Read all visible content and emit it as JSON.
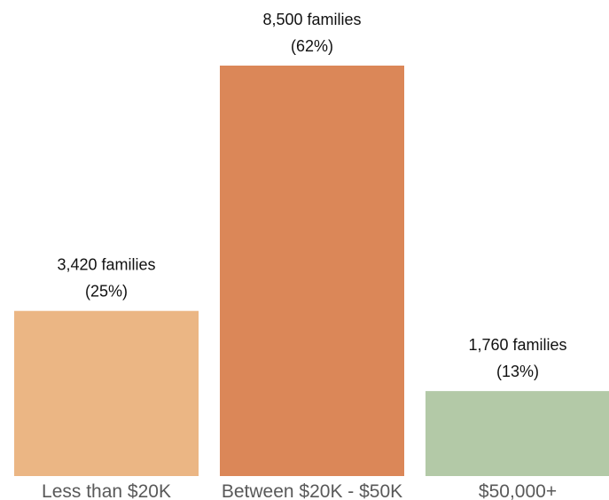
{
  "chart_data": {
    "type": "bar",
    "title": "",
    "xlabel": "",
    "ylabel": "",
    "categories": [
      "Less than $20K",
      "Between $20K - $50K",
      "$50,000+"
    ],
    "values": [
      3420,
      8500,
      1760
    ],
    "percentages": [
      25,
      62,
      13
    ],
    "data_labels": [
      {
        "count": "3,420 families",
        "percent": "(25%)"
      },
      {
        "count": "8,500 families",
        "percent": "(62%)"
      },
      {
        "count": "1,760 families",
        "percent": "(13%)"
      }
    ],
    "colors": [
      "#ebb684",
      "#db8758",
      "#b3c9a7"
    ],
    "ylim": [
      0,
      8500
    ],
    "grid": false,
    "legend": "none"
  }
}
